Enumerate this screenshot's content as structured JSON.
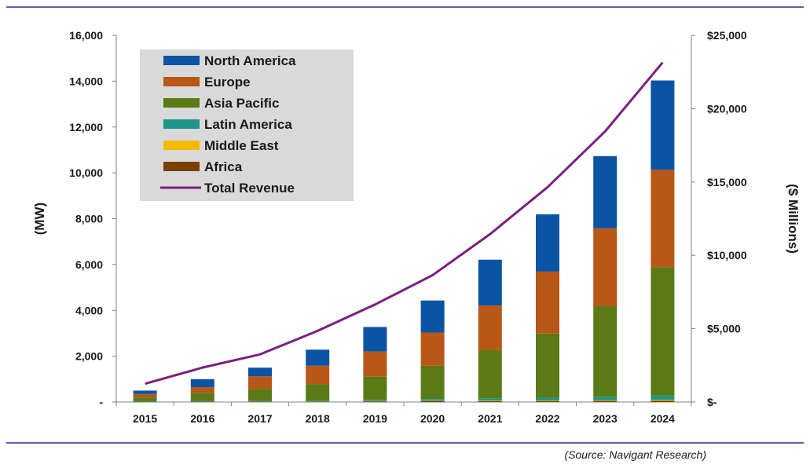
{
  "chart_data": {
    "type": "bar",
    "stacked": true,
    "categories": [
      "2015",
      "2016",
      "2017",
      "2018",
      "2019",
      "2020",
      "2021",
      "2022",
      "2023",
      "2024"
    ],
    "series": [
      {
        "name": "Africa",
        "color": "#7b3f00",
        "values": [
          10,
          15,
          20,
          25,
          30,
          35,
          40,
          45,
          50,
          60
        ]
      },
      {
        "name": "Middle East",
        "color": "#f5b800",
        "values": [
          5,
          5,
          10,
          10,
          15,
          15,
          20,
          25,
          30,
          40
        ]
      },
      {
        "name": "Latin America",
        "color": "#1f9488",
        "values": [
          20,
          30,
          40,
          50,
          60,
          80,
          100,
          120,
          150,
          180
        ]
      },
      {
        "name": "Asia Pacific",
        "color": "#5a7a15",
        "values": [
          165,
          350,
          500,
          700,
          1000,
          1450,
          2100,
          2800,
          3950,
          5600
        ]
      },
      {
        "name": "Europe",
        "color": "#b85716",
        "values": [
          150,
          250,
          550,
          800,
          1100,
          1450,
          1950,
          2700,
          3400,
          4250
        ]
      },
      {
        "name": "North America",
        "color": "#0b54a3",
        "values": [
          150,
          350,
          380,
          700,
          1070,
          1400,
          2000,
          2500,
          3150,
          3900
        ]
      }
    ],
    "line_series": {
      "name": "Total Revenue",
      "color": "#7a1f7f",
      "axis": "right",
      "values": [
        1250,
        2350,
        3250,
        4850,
        6650,
        8650,
        11450,
        14650,
        18450,
        23150
      ]
    },
    "legend_order": [
      "North America",
      "Europe",
      "Asia Pacific",
      "Latin America",
      "Middle East",
      "Africa",
      "Total Revenue"
    ],
    "legend_position": "top-left",
    "ylabel": "(MW)",
    "ylabel_right": "($ Millions)",
    "ylim": [
      0,
      16000
    ],
    "ylim_right": [
      0,
      25000
    ],
    "yticks": [
      0,
      2000,
      4000,
      6000,
      8000,
      10000,
      12000,
      14000,
      16000
    ],
    "ytick_labels": [
      "-",
      "2,000",
      "4,000",
      "6,000",
      "8,000",
      "10,000",
      "12,000",
      "14,000",
      "16,000"
    ],
    "yticks_right": [
      0,
      5000,
      10000,
      15000,
      20000,
      25000
    ],
    "ytick_labels_right": [
      "$-",
      "$5,000",
      "$10,000",
      "$15,000",
      "$20,000",
      "$25,000"
    ],
    "grid": false,
    "source": "(Source: Navigant Research)",
    "colors": {
      "rule": "#5b5fa8",
      "legend_bg": "#d9d9d9"
    }
  }
}
